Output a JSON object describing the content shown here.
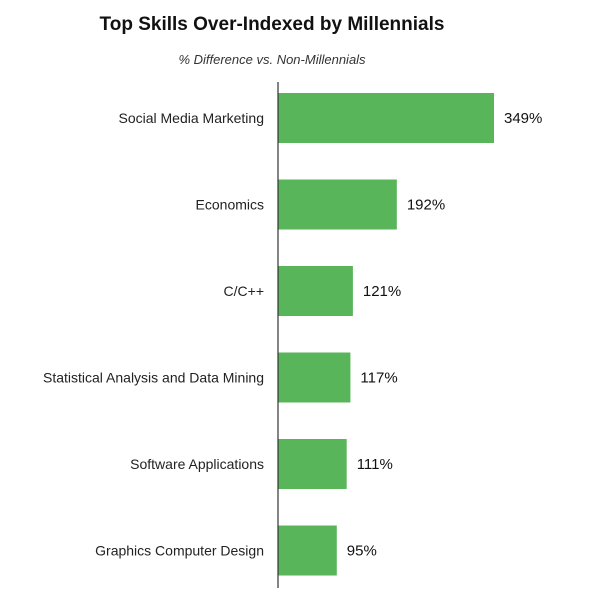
{
  "chart_data": {
    "type": "bar",
    "orientation": "horizontal",
    "title": "Top Skills Over-Indexed by Millennials",
    "subtitle": "% Difference vs. Non-Millennials",
    "categories": [
      "Social Media Marketing",
      "Economics",
      "C/C++",
      "Statistical Analysis and Data Mining",
      "Software Applications",
      "Graphics Computer Design"
    ],
    "values": [
      349,
      192,
      121,
      117,
      111,
      95
    ],
    "value_labels": [
      "349%",
      "192%",
      "121%",
      "117%",
      "111%",
      "95%"
    ],
    "xlim": [
      0,
      349
    ],
    "grid": false,
    "legend": "none",
    "bar_color": "#58b55a",
    "axis_color": "#333333"
  }
}
